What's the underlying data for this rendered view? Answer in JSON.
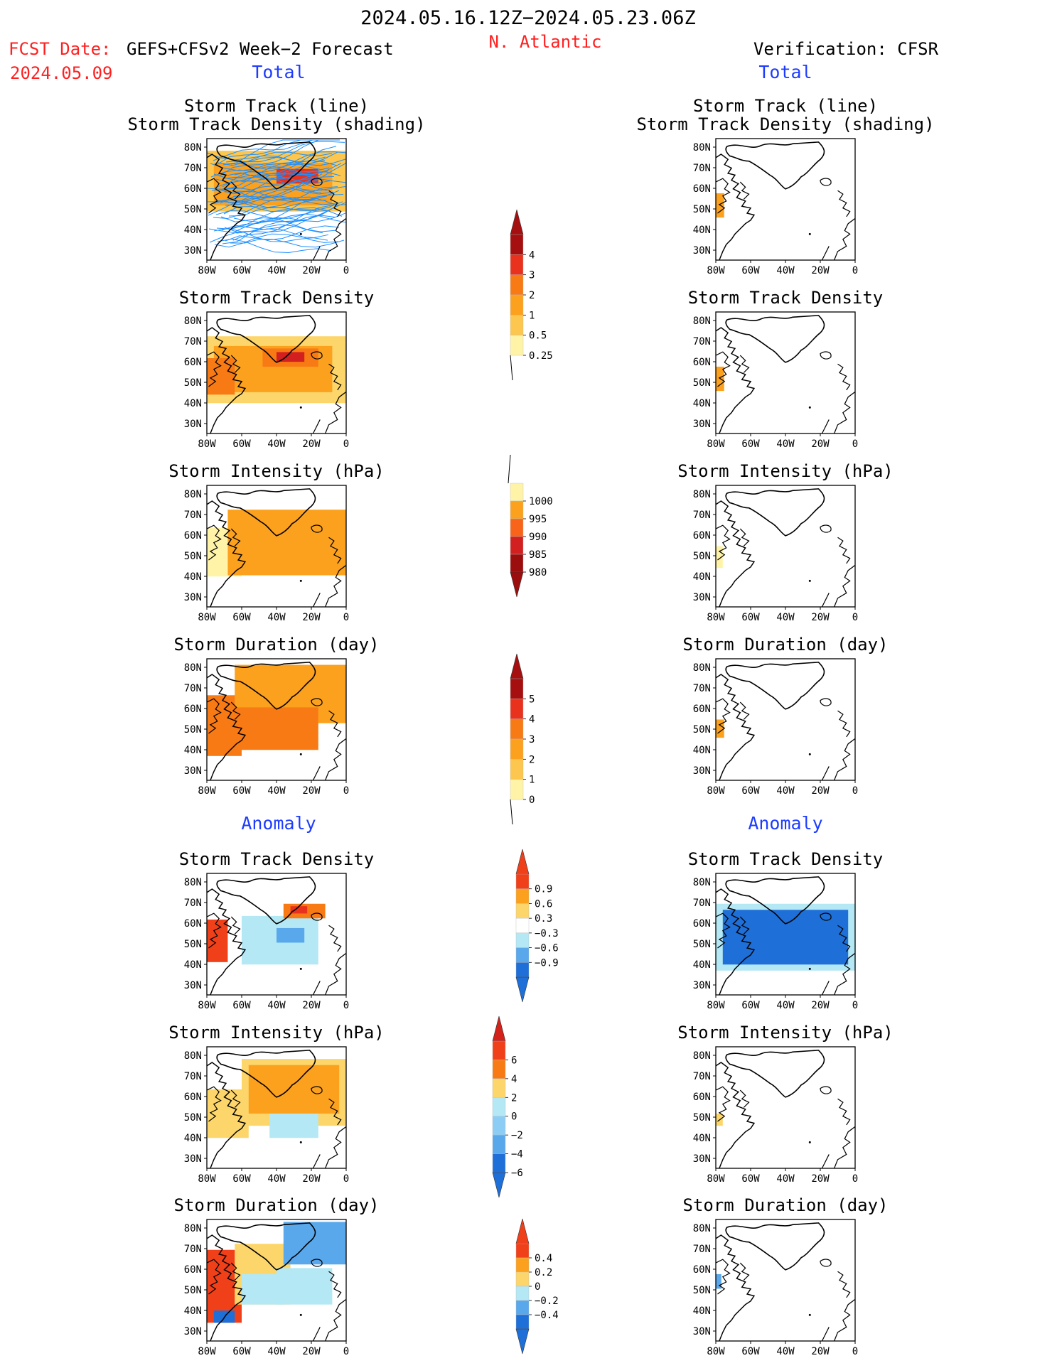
{
  "header": {
    "date_range": "2024.05.16.12Z−2024.05.23.06Z",
    "region": "N. Atlantic",
    "fcst_label": "FCST Date:",
    "fcst_model": "GEFS+CFSv2 Week−2 Forecast",
    "fcst_date": "2024.05.09",
    "verification": "Verification: CFSR"
  },
  "sections": {
    "total": "Total",
    "anomaly": "Anomaly"
  },
  "panel_titles": {
    "track_line": "Storm Track (line)",
    "track_shading": "Storm Track Density (shading)",
    "density": "Storm Track Density",
    "intensity": "Storm Intensity (hPa)",
    "duration": "Storm Duration (day)"
  },
  "axes": {
    "lon_ticks": [
      "80W",
      "60W",
      "40W",
      "20W",
      "0"
    ],
    "lat_ticks": [
      "80N",
      "70N",
      "60N",
      "50N",
      "40N",
      "30N"
    ]
  },
  "colorbars": [
    {
      "name": "track-density-colorbar",
      "labels": [
        "4",
        "3",
        "2",
        "1",
        "0.5",
        "0.25"
      ],
      "colors": [
        "#a50f0f",
        "#e8321e",
        "#f87a14",
        "#fca11e",
        "#fdc64e",
        "#fff3a8"
      ],
      "top_arrow": "#a50f0f",
      "bottom_arrow": "none"
    },
    {
      "name": "intensity-colorbar",
      "labels": [
        "1000",
        "995",
        "990",
        "985",
        "980"
      ],
      "colors": [
        "#fff3a8",
        "#fca11e",
        "#f8641a",
        "#d21f1f",
        "#9c0d0d"
      ],
      "top_arrow": "none",
      "bottom_arrow": "#9c0d0d"
    },
    {
      "name": "duration-colorbar",
      "labels": [
        "5",
        "4",
        "3",
        "2",
        "1",
        "0"
      ],
      "colors": [
        "#a50f0f",
        "#e8321e",
        "#f87a14",
        "#fca11e",
        "#fdc64e",
        "#fff3a8"
      ],
      "top_arrow": "#a50f0f",
      "bottom_arrow": "none"
    },
    {
      "name": "density-anomaly-colorbar",
      "labels": [
        "0.9",
        "0.6",
        "0.3",
        "−0.3",
        "−0.6",
        "−0.9"
      ],
      "colors": [
        "#f0401a",
        "#fca11e",
        "#fdd66b",
        "#ffffff",
        "#b4e8f5",
        "#5aa8ec",
        "#1e6fd8"
      ],
      "top_arrow": "#f0401a",
      "bottom_arrow": "#1e6fd8"
    },
    {
      "name": "intensity-anomaly-colorbar",
      "labels": [
        "6",
        "4",
        "2",
        "0",
        "−2",
        "−4",
        "−6"
      ],
      "colors": [
        "#f0401a",
        "#f87a14",
        "#fdd66b",
        "#b4e8f5",
        "#8ccdf5",
        "#5aa8ec",
        "#1e6fd8"
      ],
      "top_arrow": "#d2221a",
      "bottom_arrow": "#1e6fd8"
    },
    {
      "name": "duration-anomaly-colorbar",
      "labels": [
        "0.4",
        "0.2",
        "0",
        "−0.2",
        "−0.4"
      ],
      "colors": [
        "#f0401a",
        "#fca11e",
        "#fdd66b",
        "#b4e8f5",
        "#5aa8ec",
        "#1e6fd8"
      ],
      "top_arrow": "#f0401a",
      "bottom_arrow": "#1e6fd8"
    }
  ],
  "colors": {
    "red_text": "#ff2020",
    "blue_text": "#1e3cff",
    "track_lines": "#1e90ff",
    "land_outline": "#000000"
  }
}
